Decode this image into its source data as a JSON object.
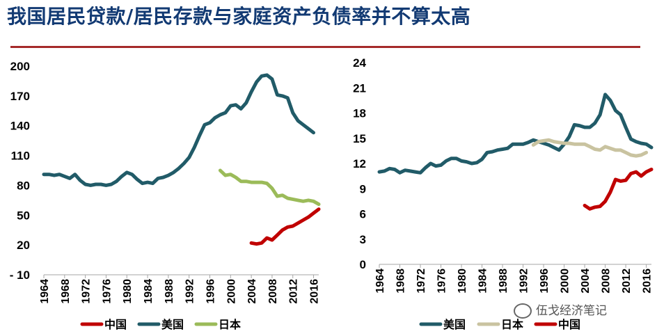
{
  "page": {
    "title": "我国居民贷款/居民存款与家庭资产负债率并不算太高",
    "watermark": "伍戈经济笔记"
  },
  "colors": {
    "china": "#c00000",
    "usa": "#215b68",
    "japan": "#9bbb59",
    "japan_right": "#c9c3a0",
    "title": "#123a73",
    "rule": "#a52a2a"
  },
  "chart_data": [
    {
      "type": "line",
      "title": "",
      "xlabel": "",
      "ylabel": "",
      "ylim": [
        -10,
        200
      ],
      "yticks": [
        200,
        170,
        140,
        110,
        80,
        50,
        20,
        -10
      ],
      "ytick_labels": [
        "200",
        "170",
        "140",
        "110",
        "80",
        "50",
        "20",
        "- 10"
      ],
      "xlim": [
        1964,
        2017
      ],
      "xticks": [
        1964,
        1968,
        1972,
        1976,
        1980,
        1984,
        1988,
        1992,
        1996,
        2000,
        2004,
        2008,
        2012,
        2016
      ],
      "legend": [
        "中国",
        "美国",
        "日本"
      ],
      "series": [
        {
          "name": "中国",
          "color_key": "china",
          "x": [
            2004,
            2005,
            2006,
            2007,
            2008,
            2009,
            2010,
            2011,
            2012,
            2013,
            2014,
            2015,
            2016,
            2017
          ],
          "values": [
            22,
            21,
            22,
            27,
            25,
            30,
            35,
            38,
            39,
            42,
            45,
            48,
            52,
            56
          ]
        },
        {
          "name": "美国",
          "color_key": "usa",
          "x": [
            1964,
            1965,
            1966,
            1967,
            1968,
            1969,
            1970,
            1971,
            1972,
            1973,
            1974,
            1975,
            1976,
            1977,
            1978,
            1979,
            1980,
            1981,
            1982,
            1983,
            1984,
            1985,
            1986,
            1987,
            1988,
            1989,
            1990,
            1991,
            1992,
            1993,
            1994,
            1995,
            1996,
            1997,
            1998,
            1999,
            2000,
            2001,
            2002,
            2003,
            2004,
            2005,
            2006,
            2007,
            2008,
            2009,
            2010,
            2011,
            2012,
            2013,
            2014,
            2015,
            2016
          ],
          "values": [
            91,
            91,
            90,
            91,
            89,
            87,
            91,
            85,
            81,
            80,
            81,
            81,
            80,
            81,
            84,
            89,
            93,
            91,
            86,
            82,
            83,
            82,
            87,
            88,
            90,
            93,
            97,
            102,
            108,
            118,
            130,
            141,
            143,
            148,
            151,
            153,
            160,
            161,
            157,
            163,
            174,
            184,
            190,
            191,
            187,
            171,
            170,
            168,
            153,
            145,
            141,
            137,
            133
          ]
        },
        {
          "name": "日本",
          "color_key": "japan",
          "x": [
            1998,
            1999,
            2000,
            2001,
            2002,
            2003,
            2004,
            2005,
            2006,
            2007,
            2008,
            2009,
            2010,
            2011,
            2012,
            2013,
            2014,
            2015,
            2016,
            2017
          ],
          "values": [
            95,
            90,
            91,
            88,
            84,
            84,
            83,
            83,
            83,
            82,
            77,
            69,
            70,
            67,
            66,
            65,
            64,
            65,
            64,
            61
          ]
        }
      ]
    },
    {
      "type": "line",
      "title": "",
      "xlabel": "",
      "ylabel": "",
      "ylim": [
        0,
        24
      ],
      "yticks": [
        24,
        21,
        18,
        15,
        12,
        9,
        6,
        3,
        0
      ],
      "ytick_labels": [
        "24",
        "21",
        "18",
        "15",
        "12",
        "9",
        "6",
        "3",
        "0"
      ],
      "xlim": [
        1964,
        2017
      ],
      "xticks": [
        1964,
        1968,
        1972,
        1976,
        1980,
        1984,
        1988,
        1992,
        1996,
        2000,
        2004,
        2008,
        2012,
        2016
      ],
      "legend": [
        "美国",
        "日本",
        "中国"
      ],
      "series": [
        {
          "name": "美国",
          "color_key": "usa",
          "x": [
            1964,
            1965,
            1966,
            1967,
            1968,
            1969,
            1970,
            1971,
            1972,
            1973,
            1974,
            1975,
            1976,
            1977,
            1978,
            1979,
            1980,
            1981,
            1982,
            1983,
            1984,
            1985,
            1986,
            1987,
            1988,
            1989,
            1990,
            1991,
            1992,
            1993,
            1994,
            1995,
            1996,
            1997,
            1998,
            1999,
            2000,
            2001,
            2002,
            2003,
            2004,
            2005,
            2006,
            2007,
            2008,
            2009,
            2010,
            2011,
            2012,
            2013,
            2014,
            2015,
            2016,
            2017
          ],
          "values": [
            11.0,
            11.1,
            11.4,
            11.3,
            10.9,
            11.2,
            11.1,
            11.0,
            10.9,
            11.5,
            12.0,
            11.7,
            11.8,
            12.3,
            12.6,
            12.6,
            12.3,
            12.2,
            12.0,
            12.1,
            12.5,
            13.3,
            13.4,
            13.6,
            13.7,
            13.8,
            14.3,
            14.3,
            14.3,
            14.5,
            14.8,
            14.6,
            14.4,
            14.2,
            13.9,
            13.6,
            14.3,
            15.2,
            16.6,
            16.5,
            16.3,
            16.3,
            16.8,
            17.8,
            20.2,
            19.5,
            18.3,
            17.8,
            16.3,
            14.9,
            14.6,
            14.4,
            14.3,
            13.9
          ]
        },
        {
          "name": "日本",
          "color_key": "japan_right",
          "x": [
            1994,
            1995,
            1996,
            1997,
            1998,
            1999,
            2000,
            2001,
            2002,
            2003,
            2004,
            2005,
            2006,
            2007,
            2008,
            2009,
            2010,
            2011,
            2012,
            2013,
            2014,
            2015,
            2016
          ],
          "values": [
            14.2,
            14.6,
            14.7,
            14.8,
            14.6,
            14.5,
            14.4,
            14.4,
            14.3,
            14.3,
            14.3,
            14.0,
            13.7,
            13.6,
            14.0,
            13.8,
            13.6,
            13.6,
            13.3,
            13.0,
            12.9,
            13.0,
            13.3
          ]
        },
        {
          "name": "中国",
          "color_key": "china",
          "x": [
            2004,
            2005,
            2006,
            2007,
            2008,
            2009,
            2010,
            2011,
            2012,
            2013,
            2014,
            2015,
            2016,
            2017
          ],
          "values": [
            7.0,
            6.6,
            6.8,
            6.9,
            7.5,
            8.6,
            10.1,
            9.9,
            10.0,
            10.8,
            11.0,
            10.5,
            11.0,
            11.3
          ]
        }
      ]
    }
  ]
}
